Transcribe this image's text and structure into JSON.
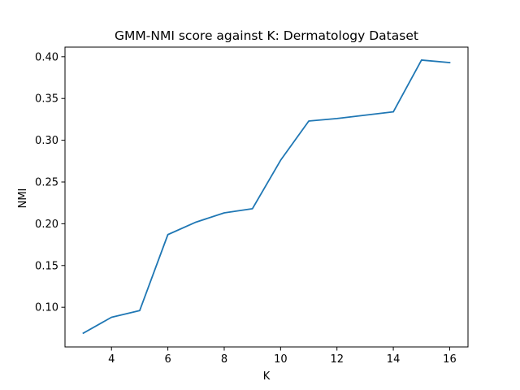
{
  "chart_data": {
    "type": "line",
    "title": "GMM-NMI score against K: Dermatology Dataset",
    "xlabel": "K",
    "ylabel": "NMI",
    "x": [
      3,
      4,
      5,
      6,
      7,
      8,
      9,
      10,
      11,
      12,
      13,
      14,
      15,
      16
    ],
    "series": [
      {
        "values": [
          0.069,
          0.088,
          0.096,
          0.187,
          0.202,
          0.213,
          0.218,
          0.276,
          0.323,
          0.326,
          0.33,
          0.334,
          0.396,
          0.393
        ],
        "color": "#1f77b4"
      }
    ],
    "xlim": [
      2.35,
      16.65
    ],
    "ylim": [
      0.0525,
      0.4115
    ],
    "xticks": [
      4,
      6,
      8,
      10,
      12,
      14,
      16
    ],
    "yticks": [
      0.1,
      0.15,
      0.2,
      0.25,
      0.3,
      0.35,
      0.4
    ],
    "xtick_labels": [
      "4",
      "6",
      "8",
      "10",
      "12",
      "14",
      "16"
    ],
    "ytick_labels": [
      "0.10",
      "0.15",
      "0.20",
      "0.25",
      "0.30",
      "0.35",
      "0.40"
    ],
    "grid": false,
    "legend": false
  }
}
